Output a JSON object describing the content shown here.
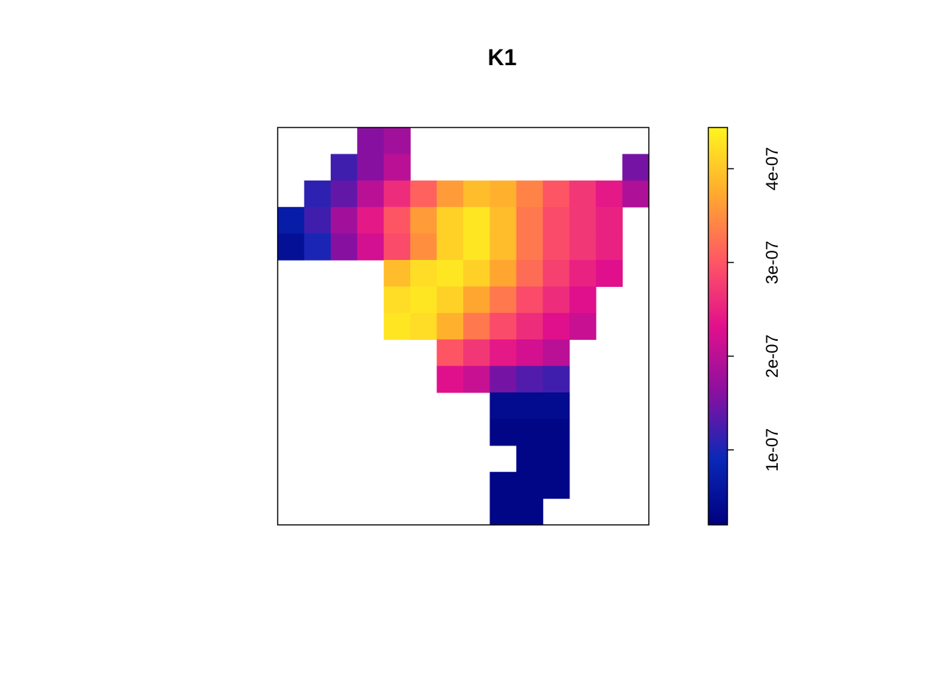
{
  "chart_data": {
    "type": "raster",
    "title": "K1",
    "values": [
      [
        null,
        null,
        null,
        1.6e-07,
        1.8e-07,
        null,
        null,
        null,
        null,
        null,
        null,
        null,
        null,
        null
      ],
      [
        null,
        null,
        1.2e-07,
        1.6e-07,
        2e-07,
        null,
        null,
        null,
        null,
        null,
        null,
        null,
        null,
        1.5e-07
      ],
      [
        null,
        1.1e-07,
        1.4e-07,
        2e-07,
        2.6e-07,
        3.1e-07,
        3.6e-07,
        3.9e-07,
        3.8e-07,
        3.4e-07,
        3e-07,
        2.7e-07,
        2.4e-07,
        1.9e-07
      ],
      [
        7e-08,
        1.2e-07,
        1.8e-07,
        2.4e-07,
        3e-07,
        3.6e-07,
        4.1e-07,
        4.3e-07,
        3.9e-07,
        3.3e-07,
        2.9e-07,
        2.7e-07,
        2.5e-07,
        null
      ],
      [
        5e-08,
        1e-07,
        1.6e-07,
        2.2e-07,
        2.9e-07,
        3.5e-07,
        4.1e-07,
        4.3e-07,
        3.9e-07,
        3.3e-07,
        2.9e-07,
        2.7e-07,
        2.5e-07,
        null
      ],
      [
        null,
        null,
        null,
        null,
        3.9e-07,
        4.2e-07,
        4.3e-07,
        4.1e-07,
        3.7e-07,
        3.2e-07,
        2.8e-07,
        2.5e-07,
        2.3e-07,
        null
      ],
      [
        null,
        null,
        null,
        null,
        4.2e-07,
        4.3e-07,
        4.1e-07,
        3.7e-07,
        3.3e-07,
        2.9e-07,
        2.6e-07,
        2.3e-07,
        null,
        null
      ],
      [
        null,
        null,
        null,
        null,
        4.3e-07,
        4.2e-07,
        3.8e-07,
        3.3e-07,
        2.9e-07,
        2.6e-07,
        2.3e-07,
        2.1e-07,
        null,
        null
      ],
      [
        null,
        null,
        null,
        null,
        null,
        null,
        3e-07,
        2.7e-07,
        2.4e-07,
        2.2e-07,
        2e-07,
        null,
        null,
        null
      ],
      [
        null,
        null,
        null,
        null,
        null,
        null,
        2.3e-07,
        2.1e-07,
        1.5e-07,
        1.3e-07,
        1.2e-07,
        null,
        null,
        null
      ],
      [
        null,
        null,
        null,
        null,
        null,
        null,
        null,
        null,
        4e-08,
        4e-08,
        4e-08,
        null,
        null,
        null
      ],
      [
        null,
        null,
        null,
        null,
        null,
        null,
        null,
        null,
        3e-08,
        3e-08,
        3e-08,
        null,
        null,
        null
      ],
      [
        null,
        null,
        null,
        null,
        null,
        null,
        null,
        null,
        null,
        3e-08,
        3e-08,
        null,
        null,
        null
      ],
      [
        null,
        null,
        null,
        null,
        null,
        null,
        null,
        null,
        3e-08,
        3e-08,
        3e-08,
        null,
        null,
        null
      ],
      [
        null,
        null,
        null,
        null,
        null,
        null,
        null,
        null,
        3e-08,
        3e-08,
        null,
        null,
        null,
        null
      ]
    ],
    "colors": [
      "#00007F",
      "#0A28B8",
      "#8A10A0",
      "#E2108C",
      "#FF5863",
      "#FFAA2E",
      "#FFF520"
    ],
    "zlim": [
      2e-08,
      4.44e-07
    ],
    "zticks": [
      {
        "value": 1e-07,
        "label": "1e-07"
      },
      {
        "value": 2e-07,
        "label": "2e-07"
      },
      {
        "value": 3e-07,
        "label": "3e-07"
      },
      {
        "value": 4e-07,
        "label": "4e-07"
      }
    ]
  }
}
